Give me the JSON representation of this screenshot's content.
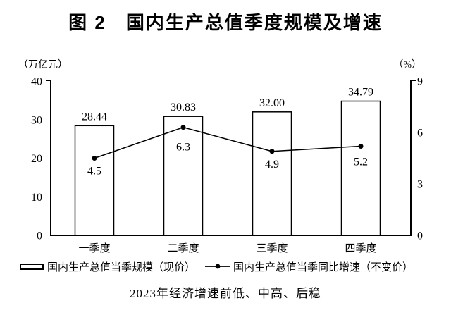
{
  "page": {
    "title": "图 2　国内生产总值季度规模及增速",
    "caption": "2023年经济增速前低、中高、后稳"
  },
  "chart_data": {
    "type": "combo",
    "title": "图 2　国内生产总值季度规模及增速",
    "categories": [
      "一季度",
      "二季度",
      "三季度",
      "四季度"
    ],
    "series": [
      {
        "name": "国内生产总值当季规模（现价）",
        "type": "bar",
        "axis": "left",
        "values": [
          28.44,
          30.83,
          32.0,
          34.79
        ],
        "labels": [
          "28.44",
          "30.83",
          "32.00",
          "34.79"
        ]
      },
      {
        "name": "国内生产总值当季同比增速（不变价）",
        "type": "line",
        "axis": "right",
        "values": [
          4.5,
          6.3,
          4.9,
          5.2
        ],
        "labels": [
          "4.5",
          "6.3",
          "4.9",
          "5.2"
        ]
      }
    ],
    "left_axis": {
      "unit": "（万亿元）",
      "min": 0,
      "max": 40,
      "ticks": [
        0,
        10,
        20,
        30,
        40
      ]
    },
    "right_axis": {
      "unit": "（%）",
      "min": 0,
      "max": 9,
      "ticks": [
        0,
        3,
        6,
        9
      ]
    },
    "legend_position": "bottom",
    "grid": false,
    "colors": {
      "foreground": "#000000",
      "background": "#ffffff",
      "bar_fill": "#ffffff"
    }
  }
}
